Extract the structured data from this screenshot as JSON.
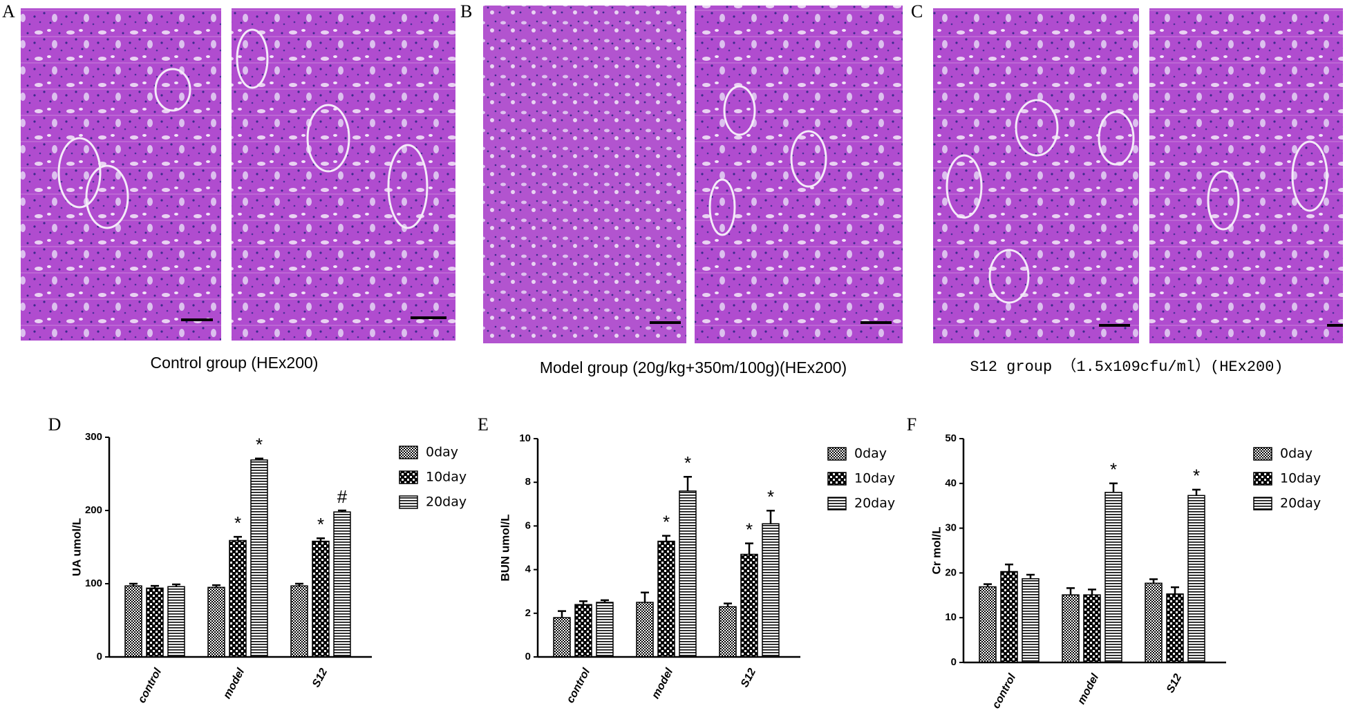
{
  "panels": [
    {
      "label": "A",
      "caption": "Control group (HEx200)"
    },
    {
      "label": "B",
      "caption": "Model group (20g/kg+350m/100g)(HEx200)"
    },
    {
      "label": "C",
      "caption": "S12 group （1.5x109cfu/ml）(HEx200)"
    }
  ],
  "chart_data": [
    {
      "type": "bar",
      "panel_label": "D",
      "y_label": "UA umol/L",
      "categories": [
        "control",
        "model",
        "S12"
      ],
      "ylim": [
        0,
        300
      ],
      "yticks": [
        0,
        100,
        200,
        300
      ],
      "legend": "right",
      "series": [
        {
          "name": "0day",
          "color": "#000000",
          "values": [
            97,
            95,
            97
          ],
          "errors": [
            3,
            3,
            3
          ],
          "annotations": [
            null,
            null,
            null
          ]
        },
        {
          "name": "10day",
          "color": "#000000",
          "values": [
            94,
            159,
            158
          ],
          "errors": [
            3,
            5,
            4
          ],
          "annotations": [
            null,
            "*",
            "*"
          ]
        },
        {
          "name": "20day",
          "color": "#000000",
          "values": [
            96,
            269,
            198
          ],
          "errors": [
            3,
            2,
            2
          ],
          "annotations": [
            null,
            "*",
            "#"
          ]
        }
      ]
    },
    {
      "type": "bar",
      "panel_label": "E",
      "y_label": "BUN umol/L",
      "categories": [
        "control",
        "model",
        "S12"
      ],
      "ylim": [
        0,
        10
      ],
      "yticks": [
        0,
        2,
        4,
        6,
        8,
        10
      ],
      "legend": "right",
      "series": [
        {
          "name": "0day",
          "color": "#000000",
          "values": [
            1.8,
            2.5,
            2.3
          ],
          "errors": [
            0.3,
            0.45,
            0.15
          ],
          "annotations": [
            null,
            null,
            null
          ]
        },
        {
          "name": "10day",
          "color": "#000000",
          "values": [
            2.4,
            5.3,
            4.7
          ],
          "errors": [
            0.15,
            0.25,
            0.5
          ],
          "annotations": [
            null,
            "*",
            "*"
          ]
        },
        {
          "name": "20day",
          "color": "#000000",
          "values": [
            2.5,
            7.6,
            6.1
          ],
          "errors": [
            0.1,
            0.65,
            0.6
          ],
          "annotations": [
            null,
            "*",
            "*"
          ]
        }
      ]
    },
    {
      "type": "bar",
      "panel_label": "F",
      "y_label": "Cr mol/L",
      "categories": [
        "control",
        "model",
        "S12"
      ],
      "ylim": [
        0,
        50
      ],
      "yticks": [
        0,
        10,
        20,
        30,
        40,
        50
      ],
      "legend": "right",
      "series": [
        {
          "name": "0day",
          "color": "#000000",
          "values": [
            16.9,
            15.1,
            17.7
          ],
          "errors": [
            0.6,
            1.5,
            0.9
          ],
          "annotations": [
            null,
            null,
            null
          ]
        },
        {
          "name": "10day",
          "color": "#000000",
          "values": [
            20.3,
            15.1,
            15.3
          ],
          "errors": [
            1.6,
            1.2,
            1.5
          ],
          "annotations": [
            null,
            null,
            null
          ]
        },
        {
          "name": "20day",
          "color": "#000000",
          "values": [
            18.7,
            38,
            37.3
          ],
          "errors": [
            0.9,
            2,
            1.3
          ],
          "annotations": [
            null,
            "*",
            "*"
          ]
        }
      ]
    }
  ]
}
